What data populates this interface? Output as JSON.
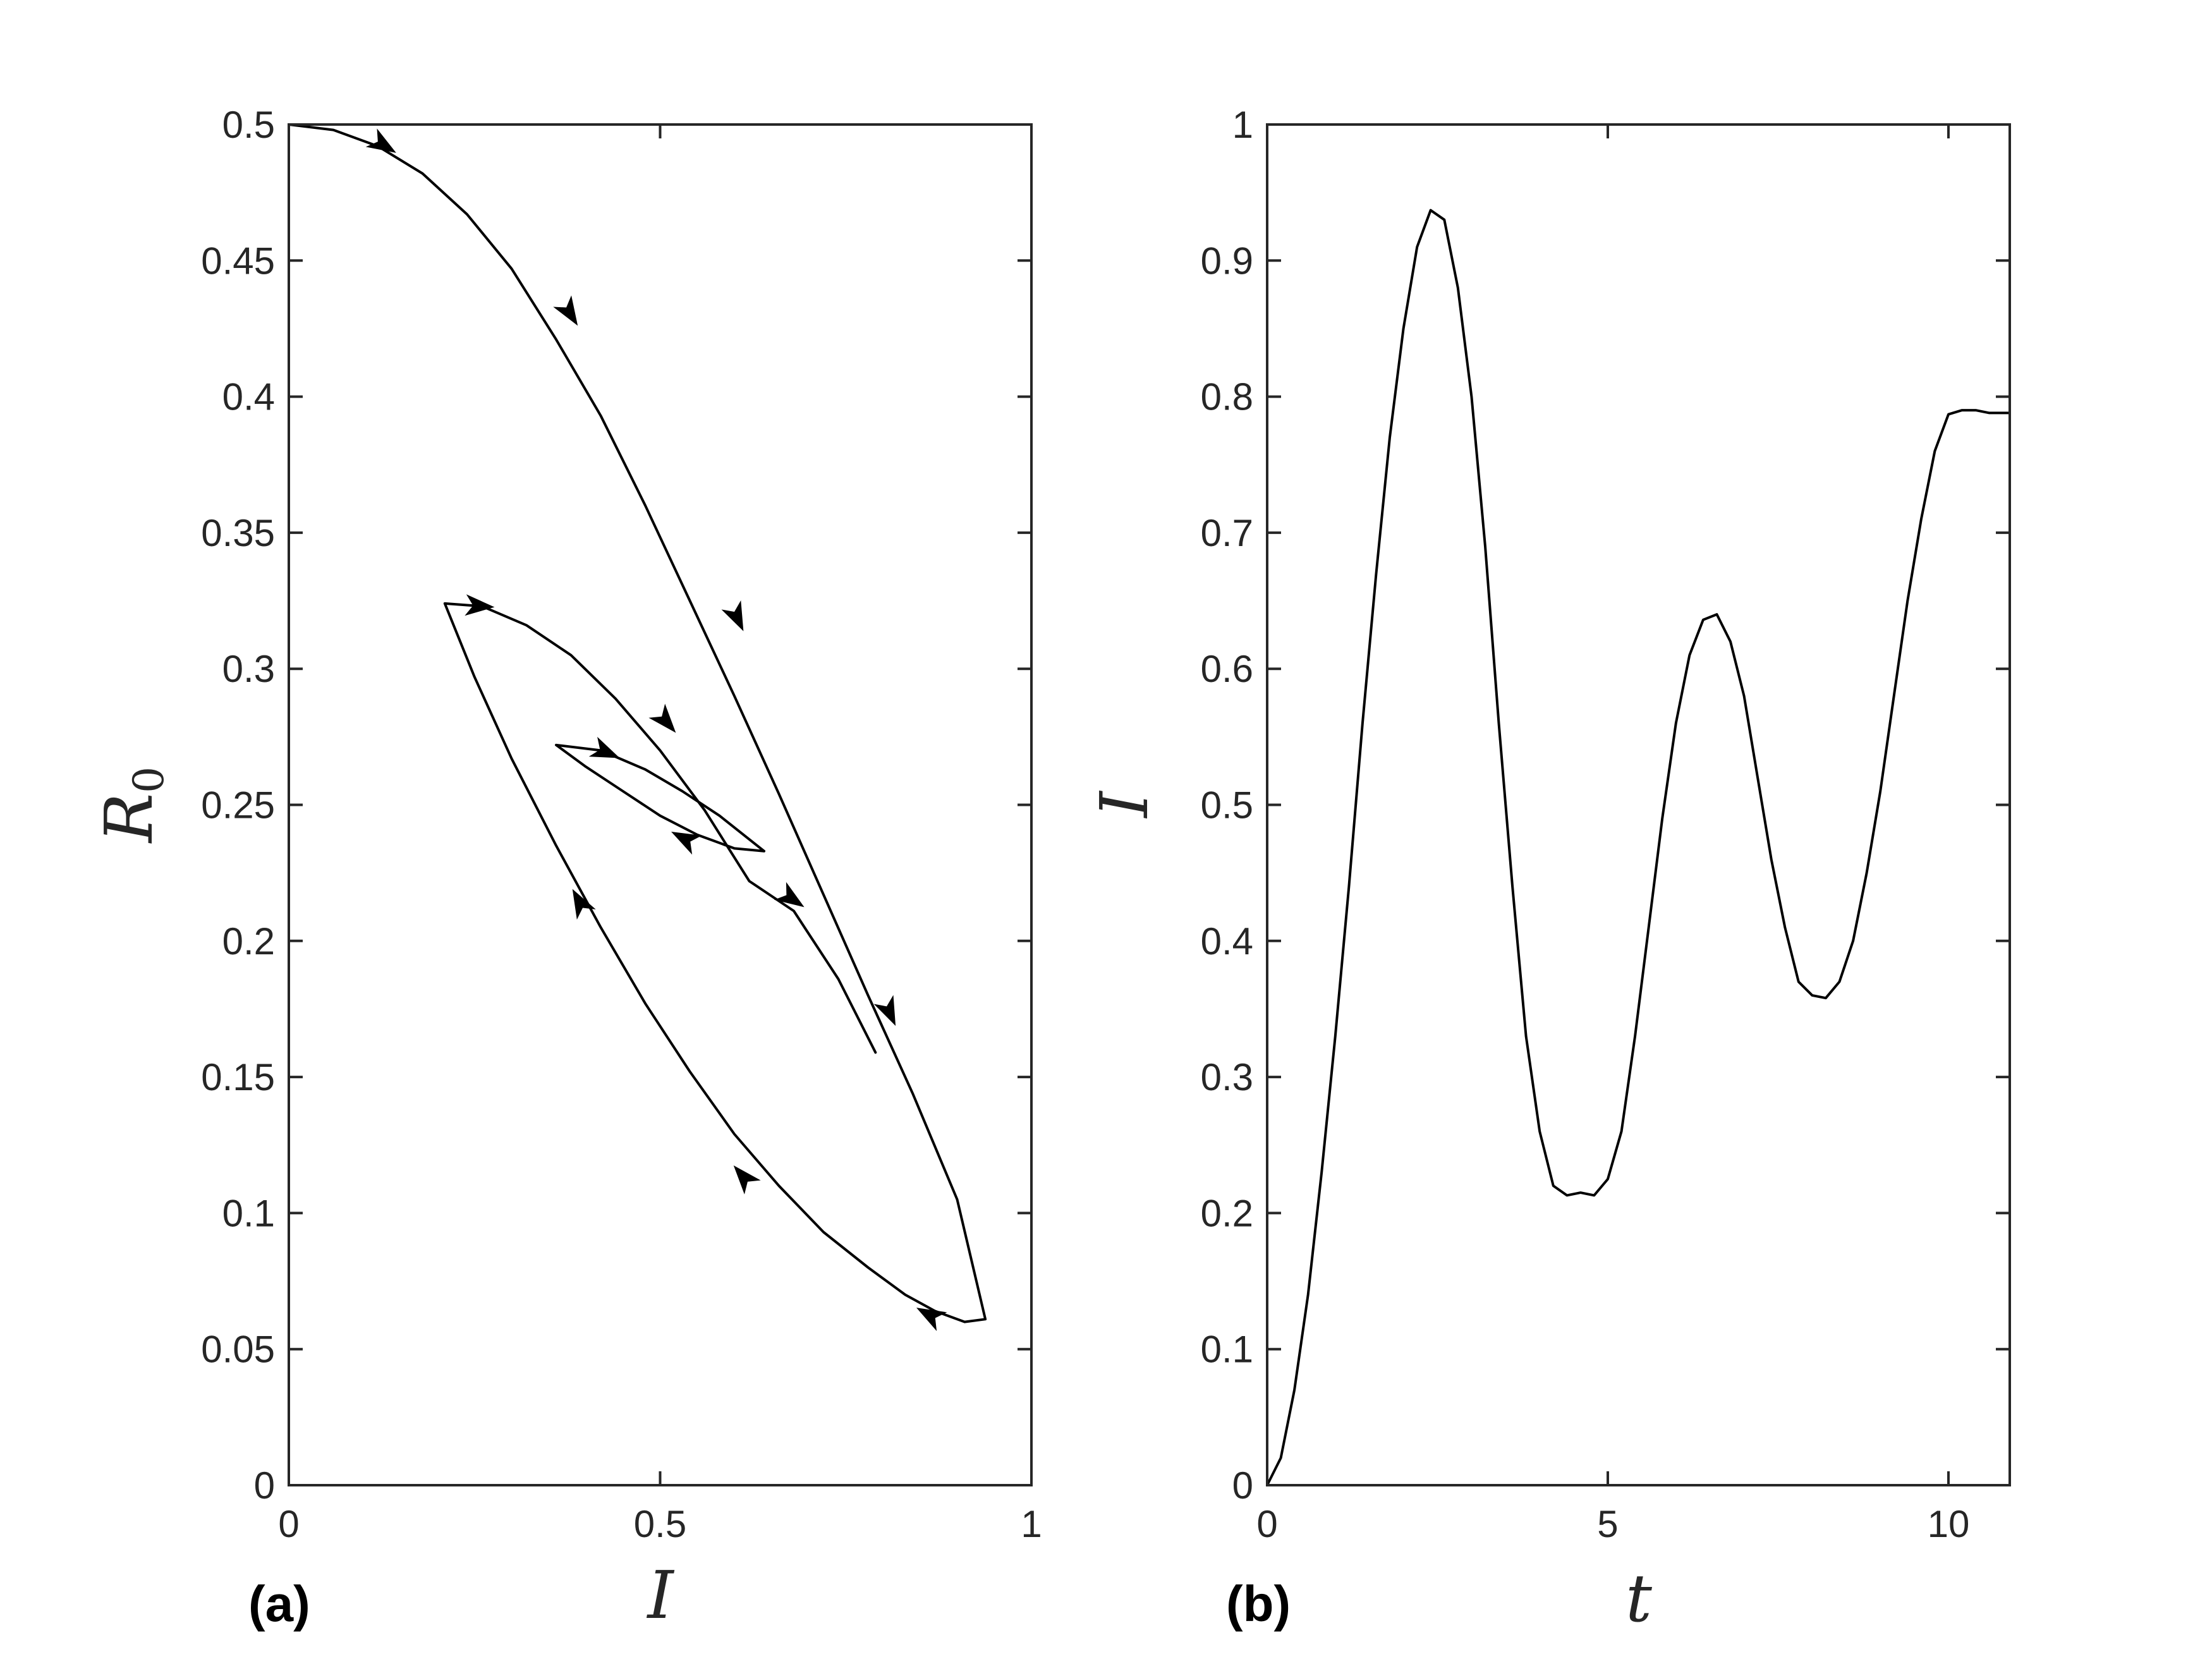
{
  "chart_data": [
    {
      "type": "line",
      "panel_label": "(a)",
      "xlabel": "I",
      "ylabel": {
        "base": "R",
        "sub": "0"
      },
      "xlim": [
        0,
        1
      ],
      "ylim": [
        0,
        0.5
      ],
      "xticks": [
        0,
        0.5,
        1
      ],
      "xtick_labels": [
        "0",
        "0.5",
        "1"
      ],
      "yticks": [
        0,
        0.05,
        0.1,
        0.15,
        0.2,
        0.25,
        0.3,
        0.35,
        0.4,
        0.45,
        0.5
      ],
      "ytick_labels": [
        "0",
        "0.05",
        "0.1",
        "0.15",
        "0.2",
        "0.25",
        "0.3",
        "0.35",
        "0.4",
        "0.45",
        "0.5"
      ],
      "grid": false,
      "color": "#000000",
      "series": [
        {
          "x": [
            0,
            0.06,
            0.12,
            0.18,
            0.24,
            0.3,
            0.36,
            0.42,
            0.48,
            0.54,
            0.6,
            0.66,
            0.72,
            0.78,
            0.84,
            0.9,
            0.938,
            0.91,
            0.87,
            0.83,
            0.78,
            0.72,
            0.66,
            0.6,
            0.54,
            0.48,
            0.42,
            0.36,
            0.3,
            0.25,
            0.21,
            0.26,
            0.32,
            0.38,
            0.44,
            0.5,
            0.56,
            0.62,
            0.68,
            0.74,
            0.79
          ],
          "y": [
            0.5,
            0.498,
            0.492,
            0.482,
            0.467,
            0.447,
            0.421,
            0.393,
            0.36,
            0.325,
            0.29,
            0.254,
            0.217,
            0.18,
            0.144,
            0.105,
            0.061,
            0.06,
            0.064,
            0.07,
            0.08,
            0.093,
            0.11,
            0.129,
            0.152,
            0.177,
            0.205,
            0.235,
            0.267,
            0.297,
            0.324,
            0.323,
            0.316,
            0.305,
            0.289,
            0.27,
            0.248,
            0.222,
            0.211,
            0.186,
            0.159
          ]
        },
        {
          "x": [
            0.64,
            0.6,
            0.55,
            0.5,
            0.45,
            0.4,
            0.36,
            0.42,
            0.48,
            0.53,
            0.58,
            0.64
          ],
          "y": [
            0.233,
            0.234,
            0.239,
            0.246,
            0.255,
            0.264,
            0.272,
            0.27,
            0.263,
            0.255,
            0.246,
            0.233
          ]
        }
      ],
      "arrows": [
        {
          "x": 0.13,
          "y": 0.492,
          "direction": "forward"
        },
        {
          "x": 0.38,
          "y": 0.43,
          "direction": "forward"
        },
        {
          "x": 0.605,
          "y": 0.318,
          "direction": "forward"
        },
        {
          "x": 0.81,
          "y": 0.173,
          "direction": "forward"
        },
        {
          "x": 0.86,
          "y": 0.063,
          "direction": "forward"
        },
        {
          "x": 0.61,
          "y": 0.114,
          "direction": "forward"
        },
        {
          "x": 0.39,
          "y": 0.215,
          "direction": "forward"
        },
        {
          "x": 0.26,
          "y": 0.323,
          "direction": "forward"
        },
        {
          "x": 0.51,
          "y": 0.28,
          "direction": "forward"
        },
        {
          "x": 0.68,
          "y": 0.215,
          "direction": "forward"
        },
        {
          "x": 0.53,
          "y": 0.238,
          "direction": "forward"
        },
        {
          "x": 0.43,
          "y": 0.269,
          "direction": "forward"
        }
      ]
    },
    {
      "type": "line",
      "panel_label": "(b)",
      "xlabel": "t",
      "ylabel": "I",
      "xlim": [
        0,
        10.9
      ],
      "ylim": [
        0,
        1
      ],
      "xticks": [
        0,
        5,
        10
      ],
      "xtick_labels": [
        "0",
        "5",
        "10"
      ],
      "yticks": [
        0,
        0.1,
        0.2,
        0.3,
        0.4,
        0.5,
        0.6,
        0.7,
        0.8,
        0.9,
        1
      ],
      "ytick_labels": [
        "0",
        "0.1",
        "0.2",
        "0.3",
        "0.4",
        "0.5",
        "0.6",
        "0.7",
        "0.8",
        "0.9",
        "1"
      ],
      "grid": false,
      "color": "#000000",
      "series": [
        {
          "x": [
            0,
            0.2,
            0.4,
            0.6,
            0.8,
            1.0,
            1.2,
            1.4,
            1.6,
            1.8,
            2.0,
            2.2,
            2.4,
            2.6,
            2.8,
            3.0,
            3.2,
            3.4,
            3.6,
            3.8,
            4.0,
            4.2,
            4.4,
            4.6,
            4.8,
            5.0,
            5.2,
            5.4,
            5.6,
            5.8,
            6.0,
            6.2,
            6.4,
            6.6,
            6.8,
            7.0,
            7.2,
            7.4,
            7.6,
            7.8,
            8.0,
            8.2,
            8.4,
            8.6,
            8.8,
            9.0,
            9.2,
            9.4,
            9.6,
            9.8,
            10.0,
            10.2,
            10.4,
            10.6,
            10.9
          ],
          "y": [
            0,
            0.02,
            0.07,
            0.14,
            0.23,
            0.33,
            0.44,
            0.56,
            0.67,
            0.77,
            0.85,
            0.91,
            0.937,
            0.93,
            0.88,
            0.8,
            0.69,
            0.56,
            0.44,
            0.33,
            0.26,
            0.22,
            0.213,
            0.215,
            0.213,
            0.225,
            0.26,
            0.33,
            0.41,
            0.49,
            0.56,
            0.61,
            0.636,
            0.64,
            0.62,
            0.58,
            0.52,
            0.46,
            0.41,
            0.37,
            0.36,
            0.358,
            0.37,
            0.4,
            0.45,
            0.51,
            0.58,
            0.65,
            0.71,
            0.76,
            0.787,
            0.79,
            0.79,
            0.788,
            0.788
          ]
        }
      ]
    }
  ]
}
